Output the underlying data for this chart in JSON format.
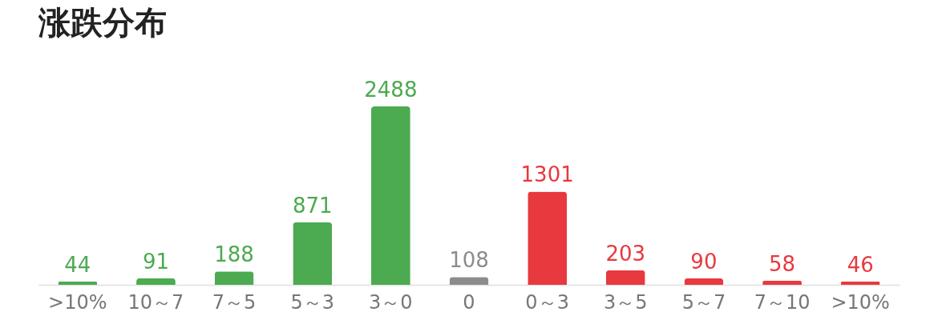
{
  "chart_data": {
    "type": "bar",
    "title": "涨跌分布",
    "categories": [
      ">10%",
      "10～7",
      "7～5",
      "5～3",
      "3～0",
      "0",
      "0～3",
      "3～5",
      "5～7",
      "7～10",
      ">10%"
    ],
    "values": [
      44,
      91,
      188,
      871,
      2488,
      108,
      1301,
      203,
      90,
      58,
      46
    ],
    "colors": [
      "#4caa50",
      "#4caa50",
      "#4caa50",
      "#4caa50",
      "#4caa50",
      "#8c8c8c",
      "#e8393e",
      "#e8393e",
      "#e8393e",
      "#e8393e",
      "#e8393e"
    ],
    "data_labels": true,
    "grid": false,
    "legend": false
  }
}
